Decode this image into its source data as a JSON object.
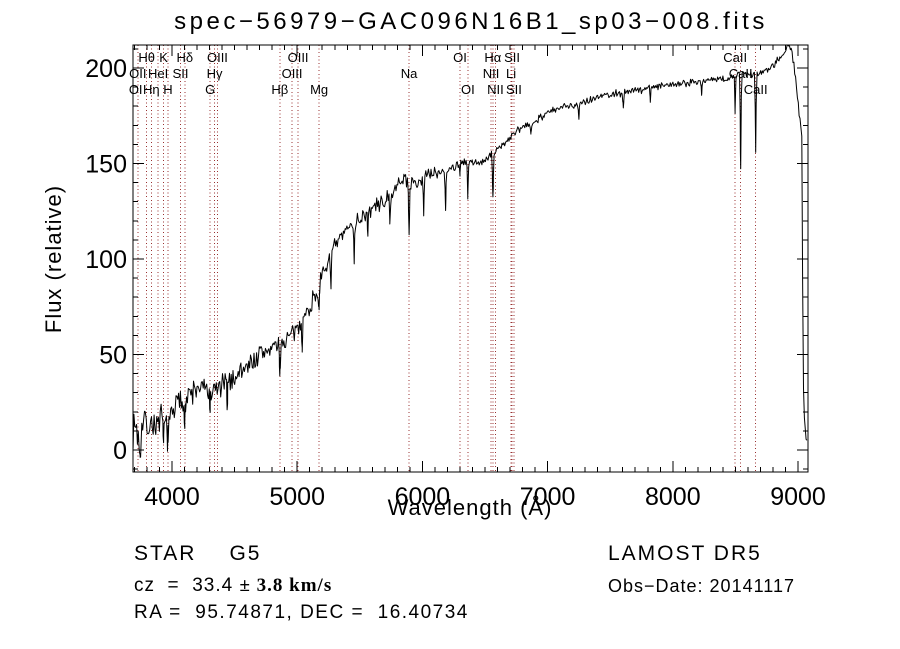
{
  "title": "spec−56979−GAC096N16B1_sp03−008.fits",
  "axes": {
    "xlabel": "Wavelength (Å)",
    "ylabel": "Flux (relative)",
    "x_major_ticks": [
      4000,
      5000,
      6000,
      7000,
      8000,
      9000
    ],
    "y_major_ticks": [
      0,
      50,
      100,
      150,
      200
    ],
    "x_minor_step": 100,
    "y_minor_step": 10,
    "x_range": [
      3688,
      9080
    ],
    "y_range": [
      -11.5,
      212.8
    ]
  },
  "colors": {
    "background": "#ffffff",
    "frame": "#000000",
    "spectrum": "#000000",
    "spectral_line": "#993030"
  },
  "chart_data": {
    "type": "line",
    "title": "spec−56979−GAC096N16B1_sp03−008.fits",
    "xlabel": "Wavelength (Å)",
    "ylabel": "Flux (relative)",
    "xlim": [
      3688,
      9080
    ],
    "ylim": [
      -11.5,
      212.8
    ],
    "grid": false,
    "series": [
      {
        "name": "flux_envelope",
        "x": [
          3690,
          3710,
          3730,
          3750,
          3770,
          3790,
          3810,
          3830,
          3850,
          3870,
          3890,
          3910,
          3930,
          3950,
          3970,
          3990,
          4010,
          4060,
          4110,
          4160,
          4210,
          4260,
          4310,
          4360,
          4410,
          4460,
          4510,
          4560,
          4610,
          4660,
          4710,
          4760,
          4810,
          4860,
          4910,
          4960,
          5010,
          5060,
          5110,
          5160,
          5210,
          5260,
          5310,
          5360,
          5410,
          5460,
          5510,
          5560,
          5610,
          5660,
          5710,
          5760,
          5810,
          5850,
          5890,
          5930,
          5970,
          6010,
          6060,
          6110,
          6160,
          6210,
          6260,
          6310,
          6360,
          6410,
          6460,
          6510,
          6560,
          6610,
          6660,
          6710,
          6760,
          6810,
          6860,
          6910,
          6960,
          7010,
          7060,
          7110,
          7160,
          7210,
          7260,
          7310,
          7360,
          7410,
          7460,
          7510,
          7560,
          7610,
          7660,
          7710,
          7760,
          7810,
          7860,
          7910,
          7960,
          8010,
          8060,
          8110,
          8160,
          8210,
          8260,
          8310,
          8360,
          8410,
          8460,
          8510,
          8560,
          8610,
          8660,
          8710,
          8760,
          8810,
          8860,
          8900,
          8930,
          8950,
          8970,
          8990,
          9005,
          9020,
          9030,
          9038,
          9045,
          9055,
          9065,
          9078
        ],
        "y": [
          10,
          14,
          6,
          10,
          14,
          16,
          12,
          13,
          15,
          13,
          12,
          17,
          12,
          16,
          12,
          18,
          21,
          25,
          26,
          30,
          32,
          32,
          30,
          32,
          34,
          36,
          39,
          42,
          45,
          47,
          50,
          52,
          54,
          55,
          57,
          60,
          64,
          70,
          76,
          84,
          92,
          101,
          107,
          112,
          116,
          119,
          122,
          124,
          127,
          129,
          131,
          134,
          139,
          143,
          141,
          139,
          141,
          143,
          144,
          145,
          146,
          147,
          149,
          150,
          150,
          150,
          151,
          152,
          155,
          158,
          161,
          164,
          167,
          169,
          171,
          173,
          175,
          177,
          178,
          179,
          180,
          181,
          182,
          183,
          184,
          185,
          186,
          186,
          187,
          187,
          188,
          188,
          189,
          190,
          190,
          191,
          191,
          192,
          192,
          192,
          193,
          193,
          193,
          194,
          194,
          194,
          195,
          196,
          197,
          197,
          197,
          198,
          200,
          202,
          206,
          210,
          212,
          209,
          200,
          188,
          178,
          170,
          165,
          80,
          25,
          10,
          6,
          4
        ]
      }
    ],
    "absorption_features": [
      {
        "wavelength": 3745,
        "depth": 12,
        "sigma": 4
      },
      {
        "wavelength": 3933,
        "depth": 8,
        "sigma": 5
      },
      {
        "wavelength": 3968,
        "depth": 7,
        "sigma": 5
      },
      {
        "wavelength": 4102,
        "depth": 8,
        "sigma": 4
      },
      {
        "wavelength": 4305,
        "depth": 7,
        "sigma": 6
      },
      {
        "wavelength": 4440,
        "depth": 12,
        "sigma": 3
      },
      {
        "wavelength": 4861,
        "depth": 13,
        "sigma": 4
      },
      {
        "wavelength": 5040,
        "depth": 13,
        "sigma": 3
      },
      {
        "wavelength": 5175,
        "depth": 9,
        "sigma": 6
      },
      {
        "wavelength": 5270,
        "depth": 14,
        "sigma": 4
      },
      {
        "wavelength": 5455,
        "depth": 18,
        "sigma": 3
      },
      {
        "wavelength": 5565,
        "depth": 13,
        "sigma": 3
      },
      {
        "wavelength": 5740,
        "depth": 16,
        "sigma": 3
      },
      {
        "wavelength": 5893,
        "depth": 27,
        "sigma": 4
      },
      {
        "wavelength": 6010,
        "depth": 20,
        "sigma": 3
      },
      {
        "wavelength": 6185,
        "depth": 22,
        "sigma": 3
      },
      {
        "wavelength": 6300,
        "depth": 6,
        "sigma": 3
      },
      {
        "wavelength": 6363,
        "depth": 18,
        "sigma": 3
      },
      {
        "wavelength": 6563,
        "depth": 24,
        "sigma": 3.5
      },
      {
        "wavelength": 6867,
        "depth": 6,
        "sigma": 4
      },
      {
        "wavelength": 7250,
        "depth": 7,
        "sigma": 4
      },
      {
        "wavelength": 7605,
        "depth": 7,
        "sigma": 4
      },
      {
        "wavelength": 7820,
        "depth": 6,
        "sigma": 3
      },
      {
        "wavelength": 8230,
        "depth": 6,
        "sigma": 3
      },
      {
        "wavelength": 8498,
        "depth": 18,
        "sigma": 3
      },
      {
        "wavelength": 8542,
        "depth": 50,
        "sigma": 3
      },
      {
        "wavelength": 8662,
        "depth": 40,
        "sigma": 3
      }
    ],
    "noise": {
      "seed": 7,
      "amp_max": 6.5,
      "amp_min": 1.6,
      "amp_scale": 600
    },
    "spectral_lines": [
      3727,
      3798,
      3835,
      3889,
      3933,
      3968,
      4068,
      4102,
      4305,
      4340,
      4363,
      4861,
      4959,
      5007,
      5175,
      5893,
      6300,
      6363,
      6548,
      6563,
      6583,
      6708,
      6716,
      6731,
      8498,
      8542,
      8662
    ],
    "line_labels": [
      {
        "text": "Hθ",
        "wavelength": 3798,
        "row": 1
      },
      {
        "text": "K",
        "wavelength": 3933,
        "row": 1
      },
      {
        "text": "Hδ",
        "wavelength": 4102,
        "row": 1
      },
      {
        "text": "OIII",
        "wavelength": 4363,
        "row": 1
      },
      {
        "text": "OIII",
        "wavelength": 5007,
        "row": 1
      },
      {
        "text": "OI",
        "wavelength": 6300,
        "row": 1
      },
      {
        "text": "Hα",
        "wavelength": 6563,
        "row": 1
      },
      {
        "text": "SII",
        "wavelength": 6716,
        "row": 1
      },
      {
        "text": "CaII",
        "wavelength": 8498,
        "row": 1
      },
      {
        "text": "OII",
        "wavelength": 3727,
        "row": 2
      },
      {
        "text": "HeI",
        "wavelength": 3889,
        "row": 2
      },
      {
        "text": "SII",
        "wavelength": 4068,
        "row": 2
      },
      {
        "text": "Hγ",
        "wavelength": 4340,
        "row": 2
      },
      {
        "text": "OIII",
        "wavelength": 4959,
        "row": 2
      },
      {
        "text": "Na",
        "wavelength": 5893,
        "row": 2
      },
      {
        "text": "NII",
        "wavelength": 6548,
        "row": 2
      },
      {
        "text": "Li",
        "wavelength": 6708,
        "row": 2
      },
      {
        "text": "CaII",
        "wavelength": 8542,
        "row": 2
      },
      {
        "text": "OI",
        "wavelength": 3710,
        "row": 3
      },
      {
        "text": "Hη",
        "wavelength": 3835,
        "row": 3
      },
      {
        "text": "H",
        "wavelength": 3968,
        "row": 3
      },
      {
        "text": "G",
        "wavelength": 4305,
        "row": 3
      },
      {
        "text": "Hβ",
        "wavelength": 4861,
        "row": 3
      },
      {
        "text": "Mg",
        "wavelength": 5175,
        "row": 3
      },
      {
        "text": "OI",
        "wavelength": 6363,
        "row": 3
      },
      {
        "text": "NII",
        "wavelength": 6583,
        "row": 3
      },
      {
        "text": "SII",
        "wavelength": 6731,
        "row": 3
      },
      {
        "text": "CaII",
        "wavelength": 8662,
        "row": 3
      }
    ]
  },
  "footer": {
    "left": {
      "class": "STAR",
      "subclass": "G5",
      "cz_text": "cz  =  33.4 ",
      "cz_value": "± 3.8 km/s",
      "ra_dec": "RA =  95.74871, DEC =  16.40734"
    },
    "right": {
      "survey": "LAMOST DR5",
      "obs_date": "Obs−Date: 20141117"
    }
  }
}
